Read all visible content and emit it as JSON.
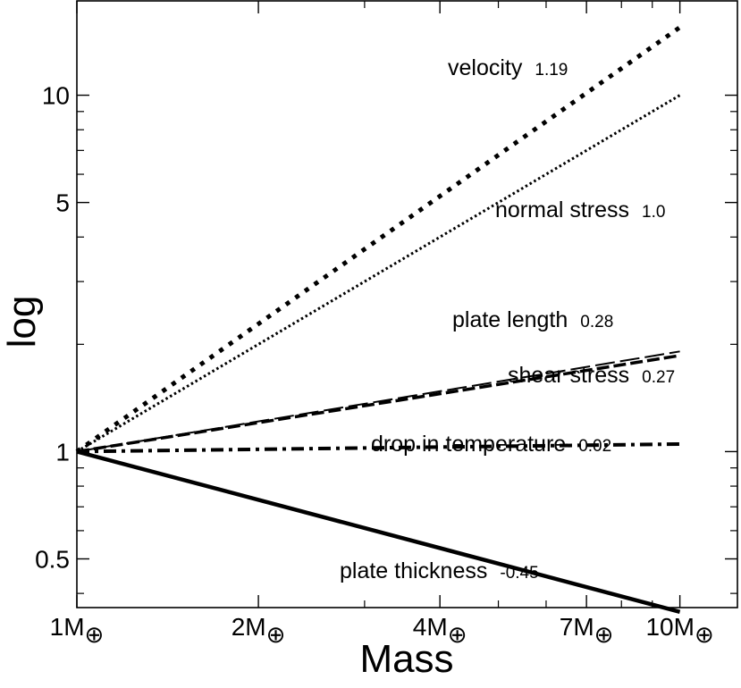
{
  "chart_data": {
    "type": "line",
    "title": "",
    "xlabel": "Mass",
    "ylabel": "log",
    "xscale": "log",
    "yscale": "log",
    "xlim": [
      1,
      12.5
    ],
    "ylim": [
      0.365,
      18.5
    ],
    "x_ticks": [
      {
        "value": 1,
        "label": "1M",
        "sub": "⊕"
      },
      {
        "value": 2,
        "label": "2M",
        "sub": "⊕"
      },
      {
        "value": 4,
        "label": "4M",
        "sub": "⊕"
      },
      {
        "value": 7,
        "label": "7M",
        "sub": "⊕"
      },
      {
        "value": 10,
        "label": "10M",
        "sub": "⊕"
      }
    ],
    "x_minor_ticks": [
      3,
      5,
      6,
      8,
      9
    ],
    "y_ticks": [
      {
        "value": 0.5,
        "label": "0.5"
      },
      {
        "value": 1,
        "label": "1"
      },
      {
        "value": 5,
        "label": "5"
      },
      {
        "value": 10,
        "label": "10"
      }
    ],
    "y_minor_ticks": [
      0.4,
      0.6,
      0.7,
      0.8,
      0.9,
      2,
      3,
      4,
      6,
      7,
      8,
      9
    ],
    "series": [
      {
        "name": "velocity",
        "exponent": "1.19",
        "slope": 1.19,
        "x": [
          1,
          10
        ],
        "y": [
          1,
          15.5
        ],
        "style": "dotted-thick"
      },
      {
        "name": "normal stress",
        "exponent": "1.0",
        "slope": 1.0,
        "x": [
          1,
          10
        ],
        "y": [
          1,
          10
        ],
        "style": "dotted"
      },
      {
        "name": "plate length",
        "exponent": "0.28",
        "slope": 0.28,
        "x": [
          1,
          10
        ],
        "y": [
          1,
          1.91
        ],
        "style": "long-dash"
      },
      {
        "name": "shear stress",
        "exponent": "0.27",
        "slope": 0.27,
        "x": [
          1,
          10
        ],
        "y": [
          1,
          1.86
        ],
        "style": "dash"
      },
      {
        "name": "drop in temperature",
        "exponent": "0.02",
        "slope": 0.02,
        "x": [
          1,
          10
        ],
        "y": [
          1,
          1.05
        ],
        "style": "dash-dot"
      },
      {
        "name": "plate thickness",
        "exponent": "-0.45",
        "slope": -0.45,
        "x": [
          1,
          10
        ],
        "y": [
          1,
          0.355
        ],
        "style": "solid"
      }
    ],
    "grid": false,
    "legend": "inline labels"
  }
}
